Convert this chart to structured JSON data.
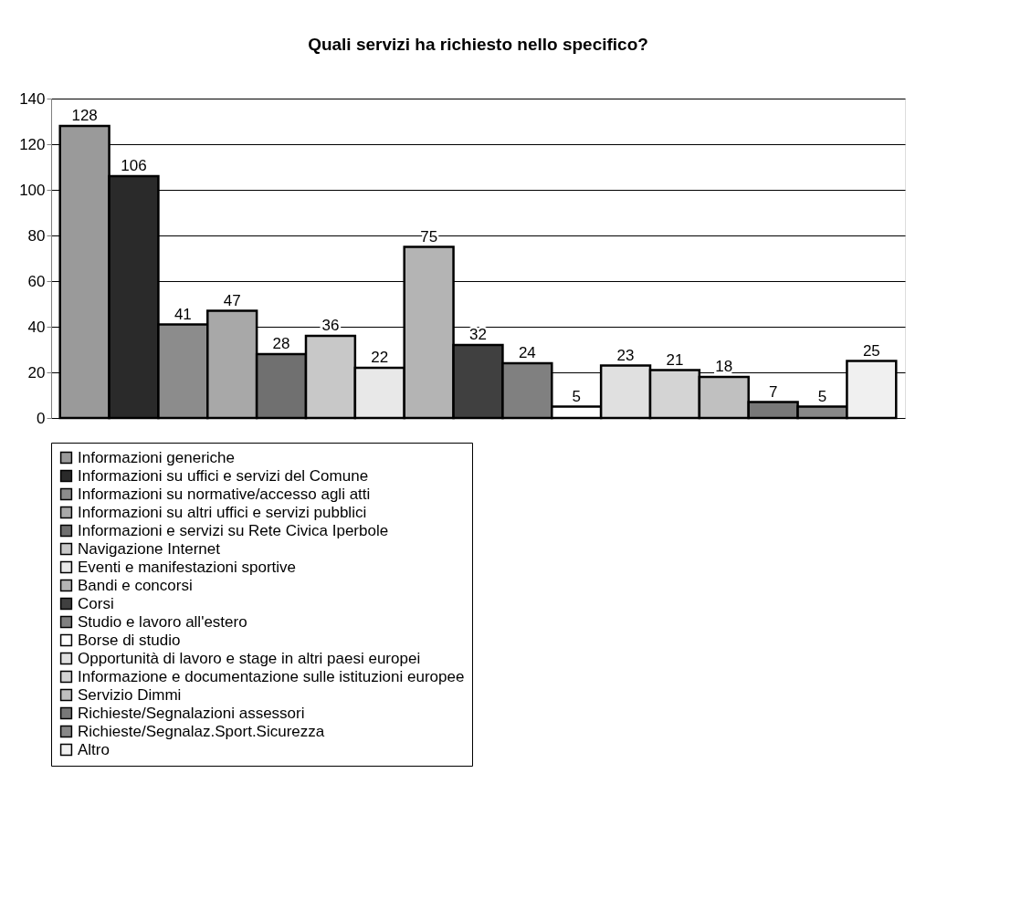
{
  "chart_data": {
    "type": "bar",
    "title": "Quali servizi ha richiesto nello specifico?",
    "categories": [
      null
    ],
    "series": [
      {
        "name": "Informazioni generiche",
        "color": "#9a9a9a",
        "values": [
          128
        ]
      },
      {
        "name": "Informazioni su uffici e servizi del Comune",
        "color": "#2a2a2a",
        "values": [
          106
        ]
      },
      {
        "name": "Informazioni su normative/accesso agli atti",
        "color": "#8c8c8c",
        "values": [
          41
        ]
      },
      {
        "name": "Informazioni su altri uffici e servizi pubblici",
        "color": "#a8a8a8",
        "values": [
          47
        ]
      },
      {
        "name": "Informazioni e servizi su Rete Civica Iperbole",
        "color": "#707070",
        "values": [
          28
        ]
      },
      {
        "name": "Navigazione Internet",
        "color": "#c8c8c8",
        "values": [
          36
        ]
      },
      {
        "name": "Eventi e manifestazioni sportive",
        "color": "#e8e8e8",
        "values": [
          22
        ]
      },
      {
        "name": "Bandi e concorsi",
        "color": "#b4b4b4",
        "values": [
          75
        ]
      },
      {
        "name": "Corsi",
        "color": "#404040",
        "values": [
          32
        ]
      },
      {
        "name": "Studio e lavoro all'estero",
        "color": "#808080",
        "values": [
          24
        ]
      },
      {
        "name": "Borse di studio",
        "color": "#ffffff",
        "values": [
          5
        ]
      },
      {
        "name": "Opportunità di lavoro e stage in altri paesi europei",
        "color": "#e0e0e0",
        "values": [
          23
        ]
      },
      {
        "name": "Informazione e documentazione sulle istituzioni europee",
        "color": "#d4d4d4",
        "values": [
          21
        ]
      },
      {
        "name": "Servizio Dimmi",
        "color": "#c0c0c0",
        "values": [
          18
        ]
      },
      {
        "name": "Richieste/Segnalazioni assessori",
        "color": "#787878",
        "values": [
          7
        ]
      },
      {
        "name": "Richieste/Segnalaz.Sport.Sicurezza",
        "color": "#888888",
        "values": [
          5
        ]
      },
      {
        "name": "Altro",
        "color": "#f0f0f0",
        "values": [
          25
        ]
      }
    ],
    "ylim": [
      0,
      140
    ],
    "yticks": [
      0,
      20,
      40,
      60,
      80,
      100,
      120,
      140
    ],
    "grid": "y",
    "legend": "bottom",
    "data_labels": true
  }
}
